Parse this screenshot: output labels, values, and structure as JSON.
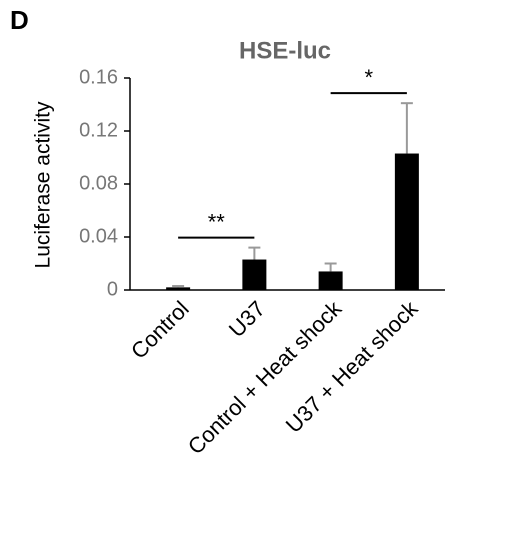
{
  "panel": "D",
  "chart_data": {
    "type": "bar",
    "title": "HSE-luc",
    "y_label": "Luciferase activity",
    "categories": [
      "Control",
      "U37",
      "Control + Heat shock",
      "U37 + Heat shock"
    ],
    "values": [
      0.002,
      0.023,
      0.014,
      0.103
    ],
    "errors": [
      0.001,
      0.009,
      0.006,
      0.038
    ],
    "color": "#000000",
    "ylim": [
      0,
      0.16
    ],
    "yticks": [
      0,
      0.04,
      0.08,
      0.12,
      0.16
    ],
    "annotations": [
      {
        "text": "**",
        "between": [
          0,
          1
        ]
      },
      {
        "text": "*",
        "between": [
          2,
          3
        ]
      }
    ]
  }
}
